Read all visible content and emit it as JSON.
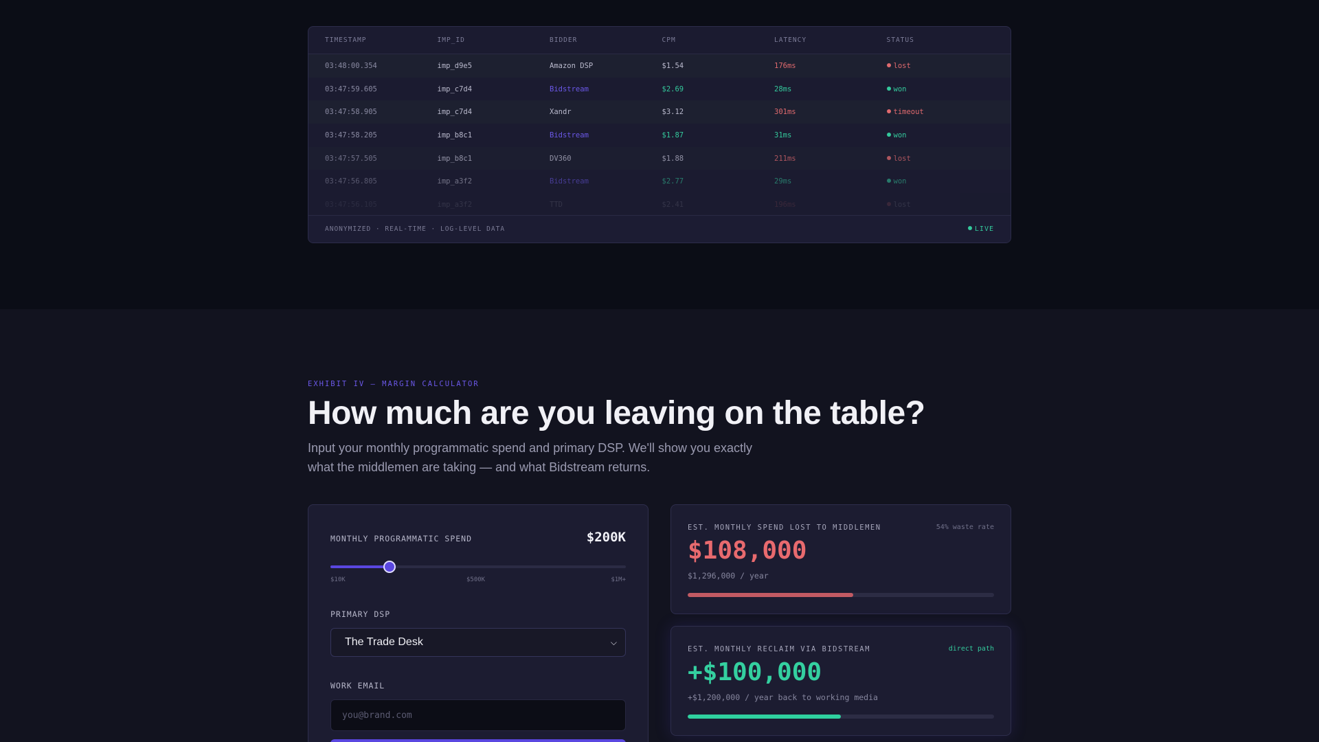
{
  "log": {
    "headers": [
      "TIMESTAMP",
      "IMP_ID",
      "BIDDER",
      "CPM",
      "LATENCY",
      "STATUS"
    ],
    "rows": [
      {
        "timestamp": "03:48:00.354",
        "imp_id": "imp_d9e5",
        "bidder": "Amazon DSP",
        "cpm": "$1.54",
        "latency": "176ms",
        "status": "lost"
      },
      {
        "timestamp": "03:47:59.605",
        "imp_id": "imp_c7d4",
        "bidder": "Bidstream",
        "cpm": "$2.69",
        "latency": "28ms",
        "status": "won"
      },
      {
        "timestamp": "03:47:58.905",
        "imp_id": "imp_c7d4",
        "bidder": "Xandr",
        "cpm": "$3.12",
        "latency": "301ms",
        "status": "timeout"
      },
      {
        "timestamp": "03:47:58.205",
        "imp_id": "imp_b8c1",
        "bidder": "Bidstream",
        "cpm": "$1.87",
        "latency": "31ms",
        "status": "won"
      },
      {
        "timestamp": "03:47:57.505",
        "imp_id": "imp_b8c1",
        "bidder": "DV360",
        "cpm": "$1.88",
        "latency": "211ms",
        "status": "lost"
      },
      {
        "timestamp": "03:47:56.805",
        "imp_id": "imp_a3f2",
        "bidder": "Bidstream",
        "cpm": "$2.77",
        "latency": "29ms",
        "status": "won"
      },
      {
        "timestamp": "03:47:56.105",
        "imp_id": "imp_a3f2",
        "bidder": "TTD",
        "cpm": "$2.41",
        "latency": "196ms",
        "status": "lost"
      }
    ],
    "footer_note": "ANONYMIZED · REAL-TIME · LOG-LEVEL DATA",
    "live_label": "LIVE"
  },
  "calculator": {
    "eyebrow": "EXHIBIT IV — MARGIN CALCULATOR",
    "headline": "How much are you leaving on the table?",
    "subtext": "Input your monthly programmatic spend and primary DSP. We'll show you exactly what the middlemen are taking — and what Bidstream returns.",
    "spend_label": "MONTHLY PROGRAMMATIC SPEND",
    "spend_value": "$200K",
    "slider_fraction": 0.2,
    "slider_ticks": [
      "$10K",
      "$500K",
      "$1M+"
    ],
    "dsp_label": "PRIMARY DSP",
    "dsp_selected": "The Trade Desk",
    "email_label": "WORK EMAIL",
    "email_placeholder": "you@brand.com"
  },
  "results": {
    "lost": {
      "label": "EST. MONTHLY SPEND LOST TO MIDDLEMEN",
      "tag": "54% waste rate",
      "value": "$108,000",
      "sub": "$1,296,000 / year",
      "bar_fraction": 0.54
    },
    "reclaim": {
      "label": "EST. MONTHLY RECLAIM VIA BIDSTREAM",
      "tag": "direct path",
      "value": "+$100,000",
      "sub": "+$1,200,000 / year back to working media",
      "bar_fraction": 0.5
    }
  },
  "colors": {
    "accent": "#5a47e0",
    "won": "#34c99c",
    "lost": "#e06a6e"
  }
}
